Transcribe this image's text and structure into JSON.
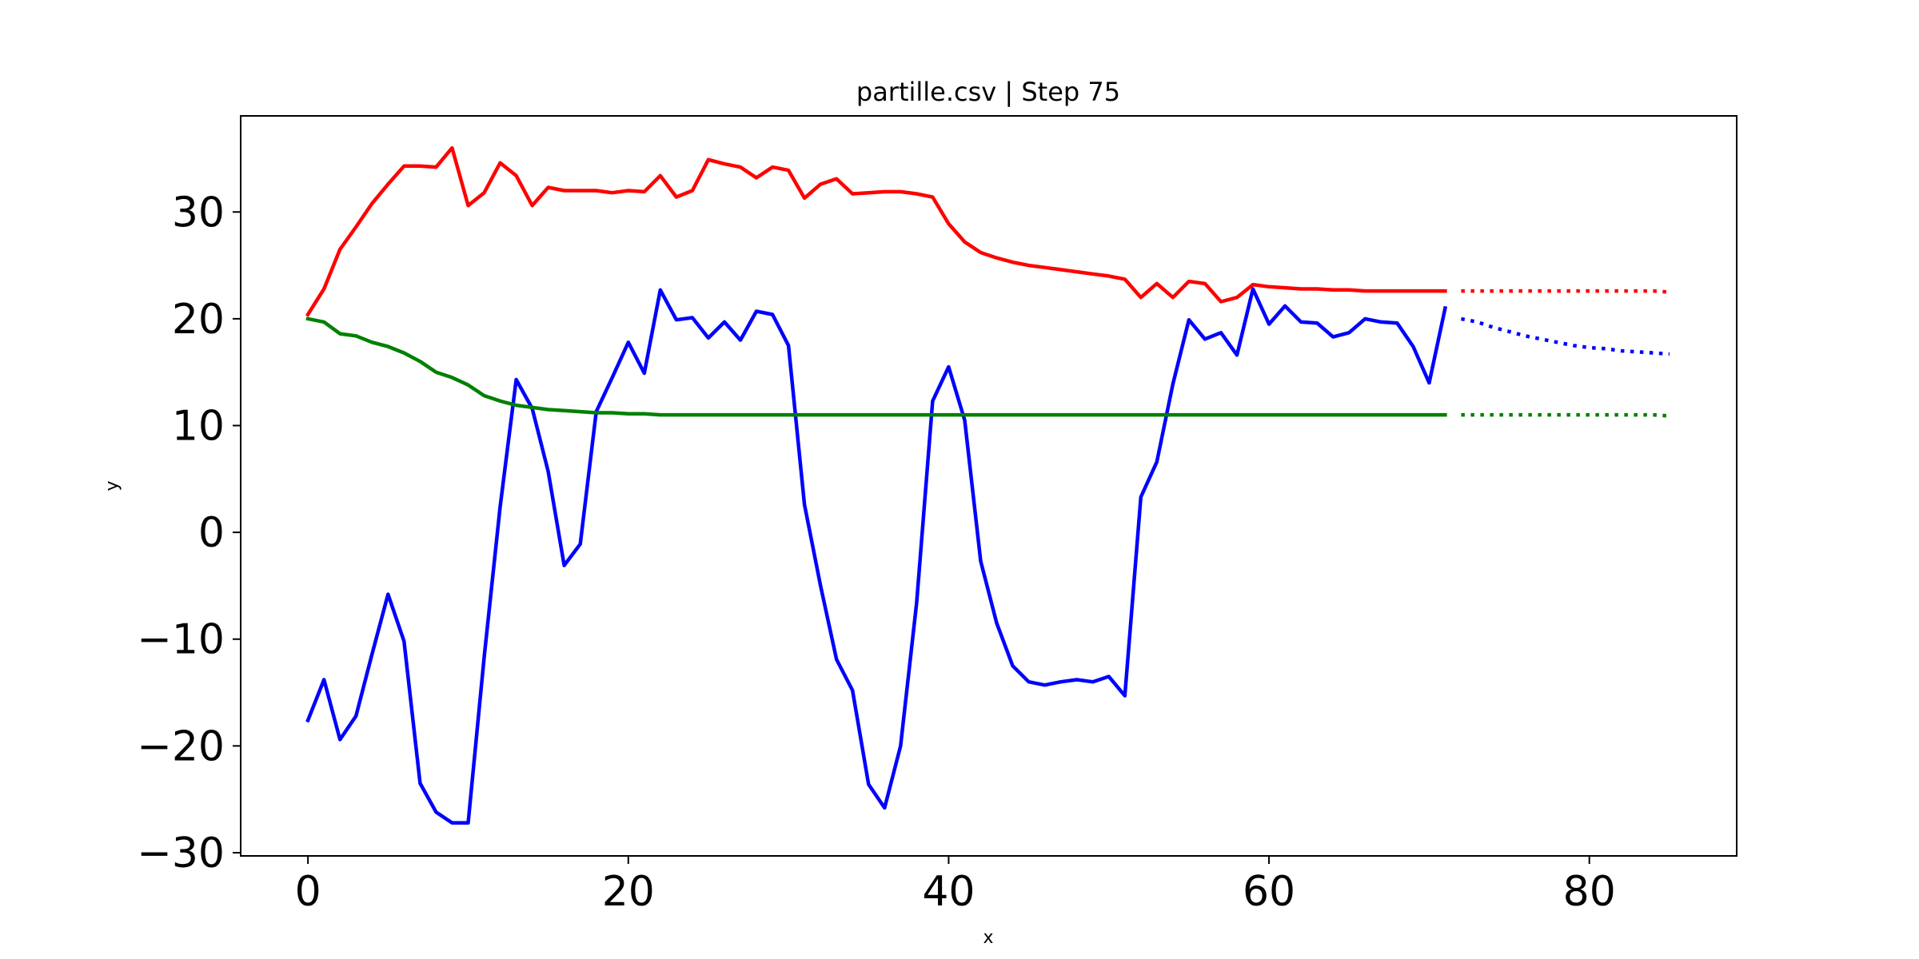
{
  "chart_data": {
    "type": "line",
    "title": "partille.csv | Step 75",
    "xlabel": "x",
    "ylabel": "y",
    "xlim": [
      -4.2,
      89.2
    ],
    "ylim": [
      -30.3,
      39.0
    ],
    "xticks": [
      0,
      20,
      40,
      60,
      80
    ],
    "yticks": [
      -30,
      -20,
      -10,
      0,
      10,
      20,
      30
    ],
    "grid": false,
    "legend": "none",
    "series": [
      {
        "color": "#ff0000",
        "style": "solid",
        "x": [
          0,
          1,
          2,
          3,
          4,
          5,
          6,
          7,
          8,
          9,
          10,
          11,
          12,
          13,
          14,
          15,
          16,
          17,
          18,
          19,
          20,
          21,
          22,
          23,
          24,
          25,
          26,
          27,
          28,
          29,
          30,
          31,
          32,
          33,
          34,
          35,
          36,
          37,
          38,
          39,
          40,
          41,
          42,
          43,
          44,
          45,
          46,
          47,
          48,
          49,
          50,
          51,
          52,
          53,
          54,
          55,
          56,
          57,
          58,
          59,
          60,
          61,
          62,
          63,
          64,
          65,
          66,
          67,
          68,
          69,
          70,
          71
        ],
        "values": [
          20.4,
          22.8,
          26.5,
          28.6,
          30.8,
          32.6,
          34.3,
          34.3,
          34.2,
          36.0,
          30.6,
          31.8,
          34.6,
          33.4,
          30.6,
          32.3,
          32.0,
          32.0,
          32.0,
          31.8,
          32.0,
          31.9,
          33.4,
          31.4,
          32.0,
          34.9,
          34.5,
          34.2,
          33.2,
          34.2,
          33.9,
          31.3,
          32.6,
          33.1,
          31.7,
          31.8,
          31.9,
          31.9,
          31.7,
          31.4,
          28.9,
          27.2,
          26.2,
          25.7,
          25.3,
          25.0,
          24.8,
          24.6,
          24.4,
          24.2,
          24.0,
          23.7,
          22.0,
          23.3,
          22.0,
          23.5,
          23.3,
          21.6,
          22.0,
          23.2,
          23.0,
          22.9,
          22.8,
          22.8,
          22.7,
          22.7,
          22.6,
          22.6,
          22.6,
          22.6,
          22.6,
          22.6
        ]
      },
      {
        "color": "#ff0000",
        "style": "dotted",
        "x": [
          72,
          73,
          74,
          75,
          76,
          77,
          78,
          79,
          80,
          81,
          82,
          83,
          84,
          85
        ],
        "values": [
          22.6,
          22.6,
          22.6,
          22.6,
          22.6,
          22.6,
          22.6,
          22.6,
          22.6,
          22.6,
          22.6,
          22.6,
          22.6,
          22.5
        ]
      },
      {
        "color": "#0000ff",
        "style": "solid",
        "x": [
          0,
          1,
          2,
          3,
          4,
          5,
          6,
          7,
          8,
          9,
          10,
          11,
          12,
          13,
          14,
          15,
          16,
          17,
          18,
          19,
          20,
          21,
          22,
          23,
          24,
          25,
          26,
          27,
          28,
          29,
          30,
          31,
          32,
          33,
          34,
          35,
          36,
          37,
          38,
          39,
          40,
          41,
          42,
          43,
          44,
          45,
          46,
          47,
          48,
          49,
          50,
          51,
          52,
          53,
          54,
          55,
          56,
          57,
          58,
          59,
          60,
          61,
          62,
          63,
          64,
          65,
          66,
          67,
          68,
          69,
          70,
          71
        ],
        "values": [
          -17.6,
          -13.8,
          -19.4,
          -17.2,
          -11.4,
          -5.8,
          -10.2,
          -23.5,
          -26.2,
          -27.2,
          -27.2,
          -11.7,
          2.4,
          14.3,
          11.6,
          5.7,
          -3.1,
          -1.1,
          11.3,
          14.5,
          17.8,
          14.9,
          22.7,
          19.9,
          20.1,
          18.2,
          19.7,
          18.0,
          20.7,
          20.4,
          17.5,
          2.6,
          -5.0,
          -11.9,
          -14.8,
          -23.6,
          -25.8,
          -20.0,
          -6.6,
          12.3,
          15.5,
          10.5,
          -2.7,
          -8.5,
          -12.5,
          -14.0,
          -14.3,
          -14.0,
          -13.8,
          -14.0,
          -13.5,
          -15.3,
          3.3,
          6.6,
          13.9,
          19.9,
          18.1,
          18.7,
          16.6,
          22.8,
          19.5,
          21.2,
          19.7,
          19.6,
          18.3,
          18.7,
          20.0,
          19.7,
          19.6,
          17.4,
          14.0,
          21.0
        ]
      },
      {
        "color": "#0000ff",
        "style": "dotted",
        "x": [
          72,
          73,
          74,
          75,
          76,
          77,
          78,
          79,
          80,
          81,
          82,
          83,
          84,
          85
        ],
        "values": [
          20.0,
          19.7,
          19.2,
          18.8,
          18.4,
          18.1,
          17.8,
          17.5,
          17.3,
          17.2,
          17.0,
          16.9,
          16.8,
          16.7
        ]
      },
      {
        "color": "#008000",
        "style": "solid",
        "x": [
          0,
          1,
          2,
          3,
          4,
          5,
          6,
          7,
          8,
          9,
          10,
          11,
          12,
          13,
          14,
          15,
          16,
          17,
          18,
          19,
          20,
          21,
          22,
          23,
          24,
          25,
          26,
          27,
          28,
          29,
          30,
          31,
          32,
          33,
          34,
          35,
          36,
          37,
          38,
          39,
          40,
          41,
          42,
          43,
          44,
          45,
          46,
          47,
          48,
          49,
          50,
          51,
          52,
          53,
          54,
          55,
          56,
          57,
          58,
          59,
          60,
          61,
          62,
          63,
          64,
          65,
          66,
          67,
          68,
          69,
          70,
          71
        ],
        "values": [
          20.0,
          19.7,
          18.6,
          18.4,
          17.8,
          17.4,
          16.8,
          16.0,
          15.0,
          14.5,
          13.8,
          12.8,
          12.3,
          11.9,
          11.7,
          11.5,
          11.4,
          11.3,
          11.2,
          11.2,
          11.1,
          11.1,
          11.0,
          11.0,
          11.0,
          11.0,
          11.0,
          11.0,
          11.0,
          11.0,
          11.0,
          11.0,
          11.0,
          11.0,
          11.0,
          11.0,
          11.0,
          11.0,
          11.0,
          11.0,
          11.0,
          11.0,
          11.0,
          11.0,
          11.0,
          11.0,
          11.0,
          11.0,
          11.0,
          11.0,
          11.0,
          11.0,
          11.0,
          11.0,
          11.0,
          11.0,
          11.0,
          11.0,
          11.0,
          11.0,
          11.0,
          11.0,
          11.0,
          11.0,
          11.0,
          11.0,
          11.0,
          11.0,
          11.0,
          11.0,
          11.0,
          11.0
        ]
      },
      {
        "color": "#008000",
        "style": "dotted",
        "x": [
          72,
          73,
          74,
          75,
          76,
          77,
          78,
          79,
          80,
          81,
          82,
          83,
          84,
          85
        ],
        "values": [
          11.0,
          11.0,
          11.0,
          11.0,
          11.0,
          11.0,
          11.0,
          11.0,
          11.0,
          11.0,
          11.0,
          11.0,
          11.0,
          10.9
        ]
      }
    ]
  }
}
